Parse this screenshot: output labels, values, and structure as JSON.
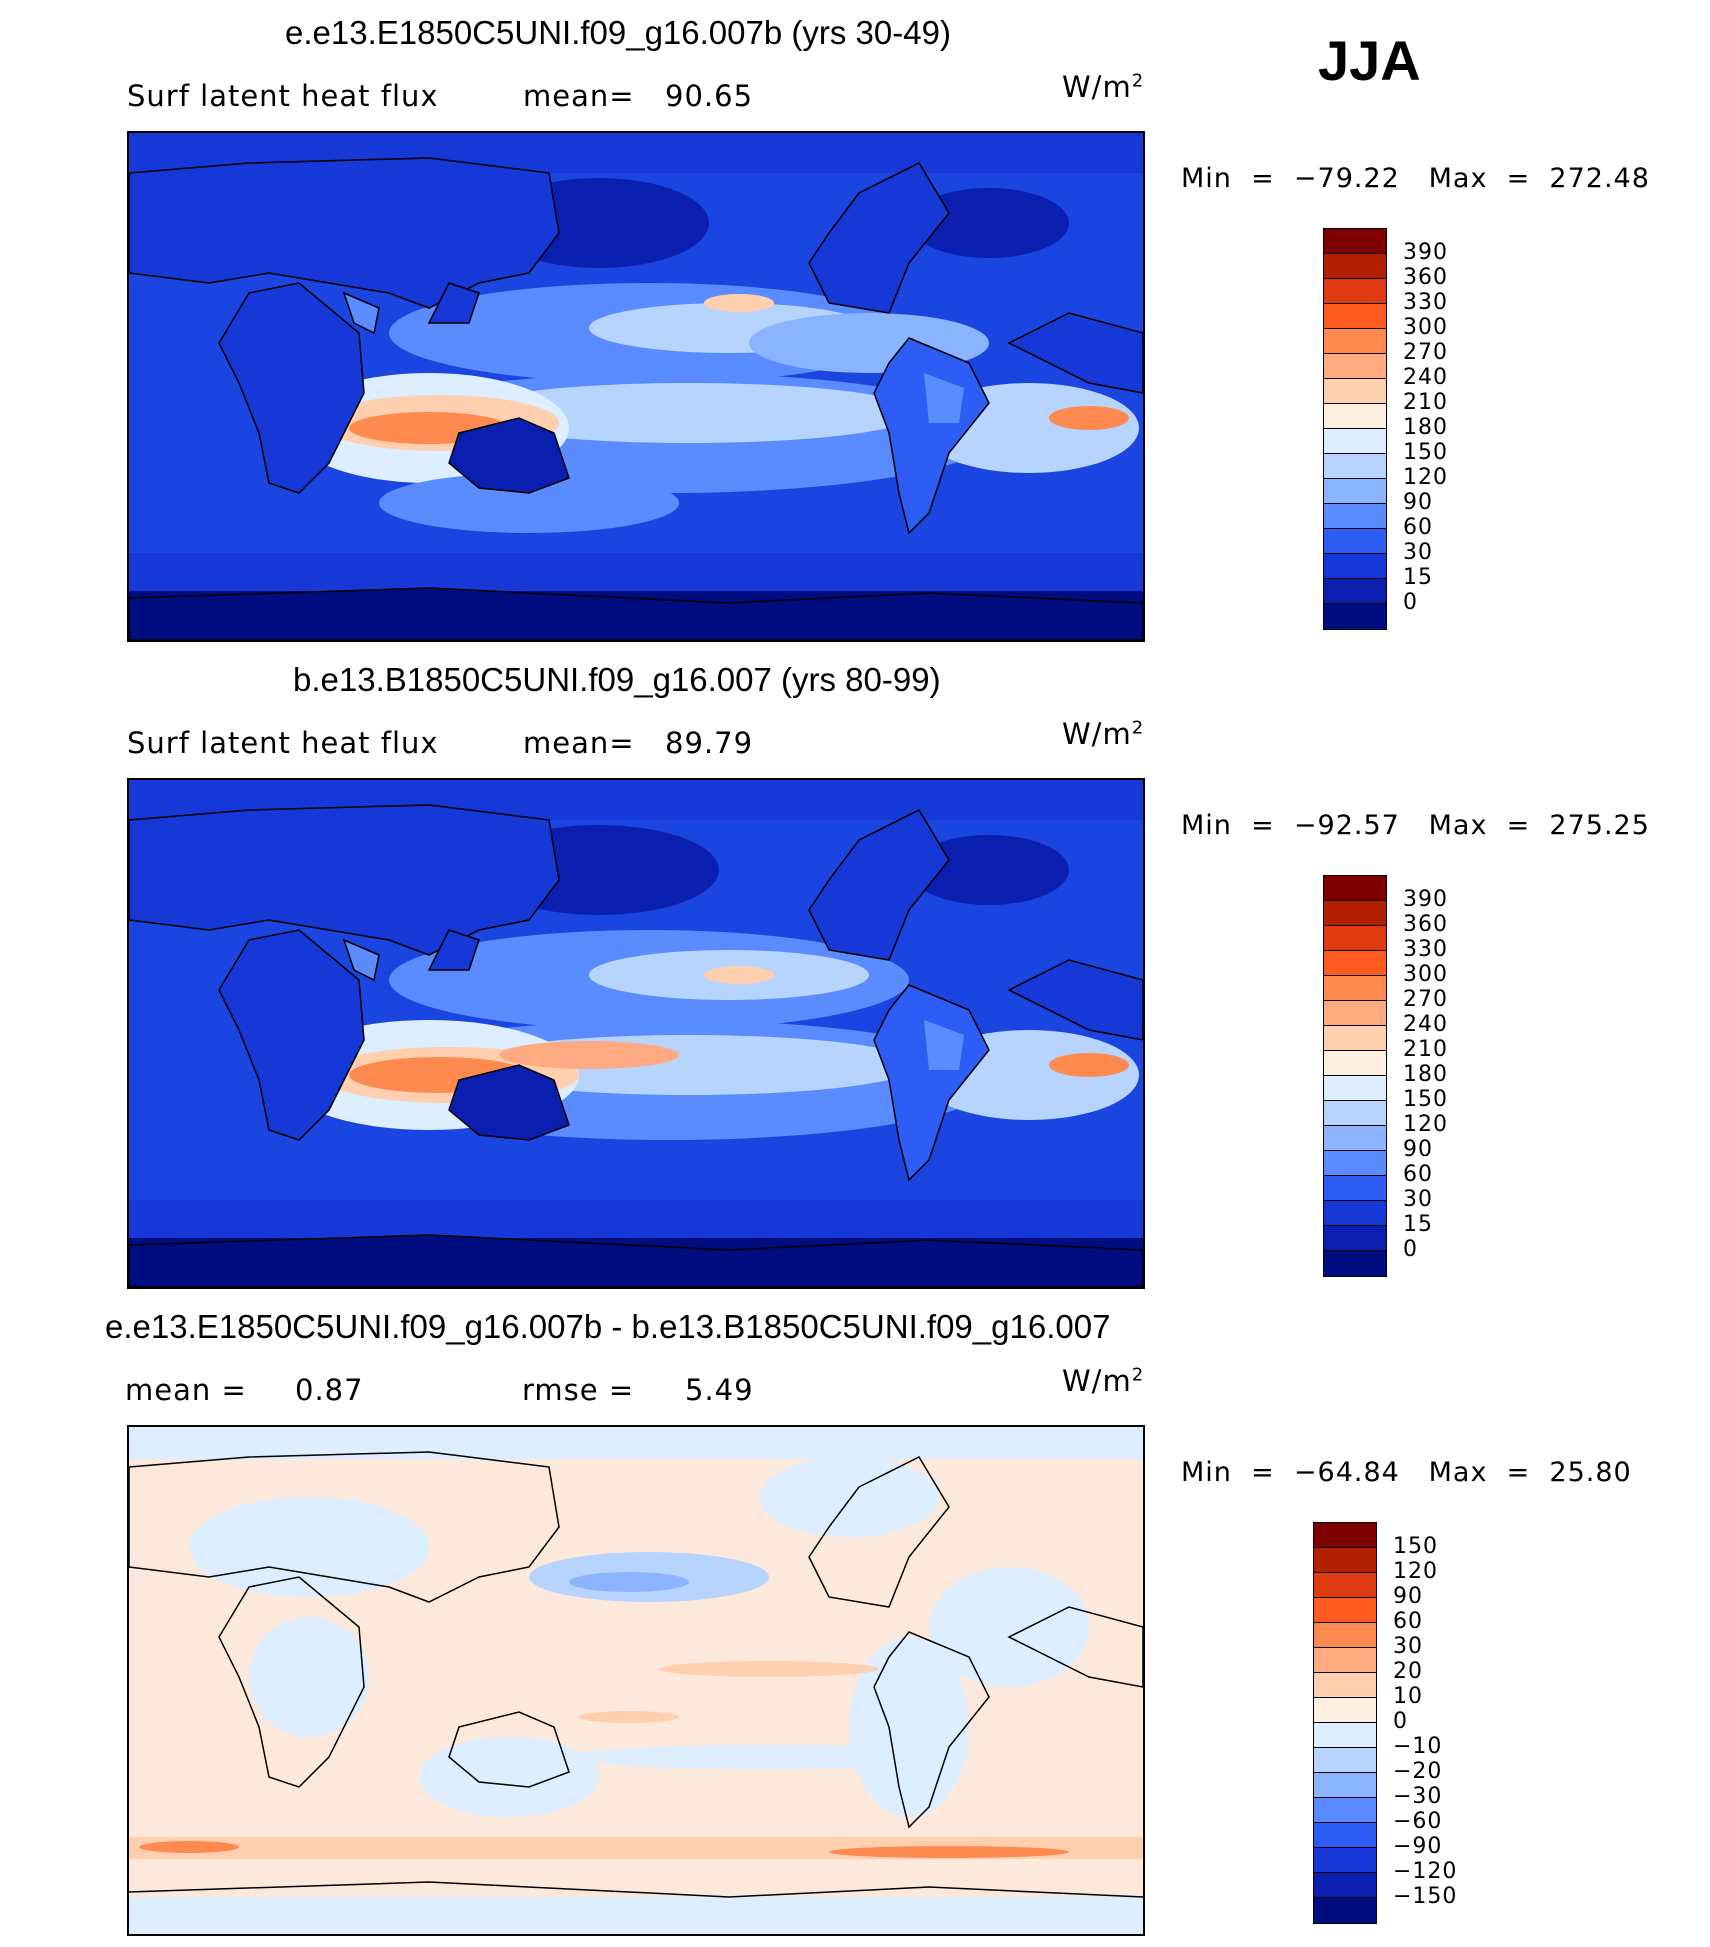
{
  "season": "JJA",
  "units_label": "W/m",
  "units_power": "2",
  "panels": [
    {
      "title": "e.e13.E1850C5UNI.f09_g16.007b (yrs 30-49)",
      "variable": "Surf latent heat flux",
      "stat1_label": "mean=",
      "stat1_value": "90.65",
      "stat2_label": "",
      "stat2_value": "",
      "min_label": "Min",
      "min_value": "−79.22",
      "max_label": "Max",
      "max_value": "272.48"
    },
    {
      "title": "b.e13.B1850C5UNI.f09_g16.007 (yrs 80-99)",
      "variable": "Surf latent heat flux",
      "stat1_label": "mean=",
      "stat1_value": "89.79",
      "stat2_label": "",
      "stat2_value": "",
      "min_label": "Min",
      "min_value": "−92.57",
      "max_label": "Max",
      "max_value": "275.25"
    },
    {
      "title": "e.e13.E1850C5UNI.f09_g16.007b - b.e13.B1850C5UNI.f09_g16.007",
      "variable": "",
      "stat1_label": "mean =",
      "stat1_value": "0.87",
      "stat2_label": "rmse =",
      "stat2_value": "5.49",
      "min_label": "Min",
      "min_value": "−64.84",
      "max_label": "Max",
      "max_value": "25.80"
    }
  ],
  "chart_data": [
    {
      "type": "heatmap",
      "title": "e.e13.E1850C5UNI.f09_g16.007b (yrs 30-49)",
      "variable": "Surf latent heat flux",
      "units": "W/m2",
      "mean": 90.65,
      "min": -79.22,
      "max": 272.48,
      "colorbar_levels": [
        "390",
        "360",
        "330",
        "300",
        "270",
        "240",
        "210",
        "180",
        "150",
        "120",
        "90",
        "60",
        "30",
        "15",
        "0"
      ],
      "colorbar_colors": [
        "#7f0000",
        "#b22000",
        "#e03a10",
        "#ff5a20",
        "#ff8a50",
        "#ffaa80",
        "#ffcfb0",
        "#fdf0e0",
        "#dceeff",
        "#b7d4ff",
        "#8ab4ff",
        "#5a8cff",
        "#2e5df5",
        "#1638d6",
        "#0a1fb0",
        "#000d80"
      ]
    },
    {
      "type": "heatmap",
      "title": "b.e13.B1850C5UNI.f09_g16.007 (yrs 80-99)",
      "variable": "Surf latent heat flux",
      "units": "W/m2",
      "mean": 89.79,
      "min": -92.57,
      "max": 275.25,
      "colorbar_levels": [
        "390",
        "360",
        "330",
        "300",
        "270",
        "240",
        "210",
        "180",
        "150",
        "120",
        "90",
        "60",
        "30",
        "15",
        "0"
      ],
      "colorbar_colors": [
        "#7f0000",
        "#b22000",
        "#e03a10",
        "#ff5a20",
        "#ff8a50",
        "#ffaa80",
        "#ffcfb0",
        "#fdf0e0",
        "#dceeff",
        "#b7d4ff",
        "#8ab4ff",
        "#5a8cff",
        "#2e5df5",
        "#1638d6",
        "#0a1fb0",
        "#000d80"
      ]
    },
    {
      "type": "heatmap",
      "title": "e.e13.E1850C5UNI.f09_g16.007b - b.e13.B1850C5UNI.f09_g16.007",
      "units": "W/m2",
      "mean": 0.87,
      "rmse": 5.49,
      "min": -64.84,
      "max": 25.8,
      "colorbar_levels": [
        "150",
        "120",
        "90",
        "60",
        "30",
        "20",
        "10",
        "0",
        "−10",
        "−20",
        "−30",
        "−60",
        "−90",
        "−120",
        "−150"
      ],
      "colorbar_colors": [
        "#7f0000",
        "#b22000",
        "#e03a10",
        "#ff5a20",
        "#ff8a50",
        "#ffaa80",
        "#ffcfb0",
        "#fdf0e0",
        "#dceeff",
        "#b7d4ff",
        "#8ab4ff",
        "#5a8cff",
        "#2e5df5",
        "#1638d6",
        "#0a1fb0",
        "#000d80"
      ]
    }
  ]
}
